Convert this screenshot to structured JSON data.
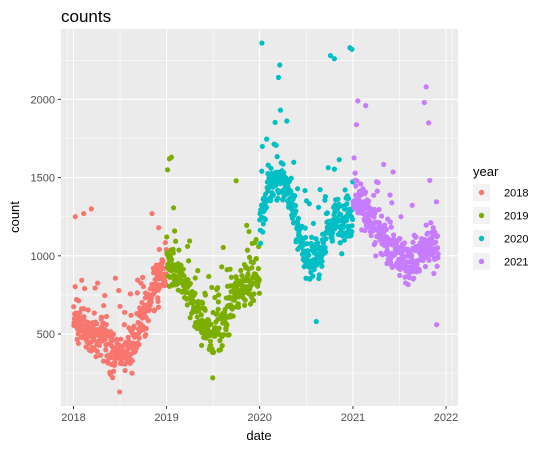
{
  "chart_data": {
    "type": "scatter",
    "title": "counts",
    "xlabel": "date",
    "ylabel": "count",
    "x_ticks": [
      "2018",
      "2019",
      "2020",
      "2021",
      "2022"
    ],
    "y_ticks": [
      500,
      1000,
      1500,
      2000
    ],
    "xlim": [
      "2017-11-13",
      "2022-02-17"
    ],
    "ylim": [
      40,
      2450
    ],
    "grid": true,
    "legend": {
      "title": "year",
      "position": "right"
    },
    "series": [
      {
        "name": "2018",
        "color": "#F8766D",
        "profile": [
          [
            0.0,
            600
          ],
          [
            0.08,
            560
          ],
          [
            0.16,
            520
          ],
          [
            0.25,
            470
          ],
          [
            0.33,
            440
          ],
          [
            0.42,
            400
          ],
          [
            0.5,
            370
          ],
          [
            0.58,
            390
          ],
          [
            0.67,
            480
          ],
          [
            0.75,
            620
          ],
          [
            0.83,
            740
          ],
          [
            0.92,
            850
          ],
          [
            0.99,
            900
          ]
        ],
        "spread": 210,
        "n": 365,
        "y_min": 130,
        "y_max": 1300,
        "points": [
          [
            "2018-01-08",
            1250
          ],
          [
            "2018-02-10",
            1270
          ],
          [
            "2018-03-12",
            1300
          ],
          [
            "2018-11-05",
            1270
          ],
          [
            "2018-12-01",
            1180
          ],
          [
            "2018-07-01",
            130
          ]
        ]
      },
      {
        "name": "2019",
        "color": "#7CAE00",
        "profile": [
          [
            0.0,
            1000
          ],
          [
            0.08,
            930
          ],
          [
            0.16,
            850
          ],
          [
            0.25,
            720
          ],
          [
            0.33,
            620
          ],
          [
            0.42,
            540
          ],
          [
            0.5,
            470
          ],
          [
            0.58,
            520
          ],
          [
            0.67,
            640
          ],
          [
            0.75,
            770
          ],
          [
            0.83,
            840
          ],
          [
            0.92,
            830
          ],
          [
            0.99,
            870
          ]
        ],
        "spread": 200,
        "n": 365,
        "y_min": 220,
        "y_max": 1630,
        "points": [
          [
            "2019-01-12",
            1620
          ],
          [
            "2019-01-20",
            1630
          ],
          [
            "2019-01-05",
            1550
          ],
          [
            "2019-10-01",
            1480
          ],
          [
            "2019-07-01",
            220
          ]
        ]
      },
      {
        "name": "2020",
        "color": "#00BFC4",
        "profile": [
          [
            0.0,
            1250
          ],
          [
            0.08,
            1380
          ],
          [
            0.16,
            1480
          ],
          [
            0.25,
            1480
          ],
          [
            0.33,
            1380
          ],
          [
            0.42,
            1150
          ],
          [
            0.5,
            1000
          ],
          [
            0.58,
            950
          ],
          [
            0.67,
            1050
          ],
          [
            0.75,
            1180
          ],
          [
            0.83,
            1230
          ],
          [
            0.92,
            1250
          ],
          [
            0.99,
            1250
          ]
        ],
        "spread": 220,
        "n": 365,
        "y_min": 580,
        "y_max": 2360,
        "points": [
          [
            "2020-01-10",
            2360
          ],
          [
            "2020-03-20",
            2220
          ],
          [
            "2020-03-15",
            2140
          ],
          [
            "2020-10-05",
            2280
          ],
          [
            "2020-10-20",
            2260
          ],
          [
            "2020-12-20",
            2330
          ],
          [
            "2020-12-28",
            2320
          ],
          [
            "2020-08-10",
            580
          ]
        ]
      },
      {
        "name": "2021",
        "color": "#C77CFF",
        "profile": [
          [
            0.0,
            1400
          ],
          [
            0.08,
            1350
          ],
          [
            0.16,
            1250
          ],
          [
            0.25,
            1150
          ],
          [
            0.33,
            1100
          ],
          [
            0.42,
            1040
          ],
          [
            0.5,
            1000
          ],
          [
            0.58,
            960
          ],
          [
            0.67,
            1000
          ],
          [
            0.75,
            1030
          ],
          [
            0.83,
            1050
          ],
          [
            0.92,
            1080
          ],
          [
            0.99,
            900
          ]
        ],
        "spread": 230,
        "n": 335,
        "y_min": 540,
        "y_max": 2080,
        "points": [
          [
            "2021-01-20",
            1990
          ],
          [
            "2021-02-20",
            1960
          ],
          [
            "2021-10-15",
            2080
          ],
          [
            "2021-10-08",
            1980
          ],
          [
            "2021-10-25",
            1850
          ],
          [
            "2021-11-25",
            560
          ]
        ]
      }
    ]
  }
}
